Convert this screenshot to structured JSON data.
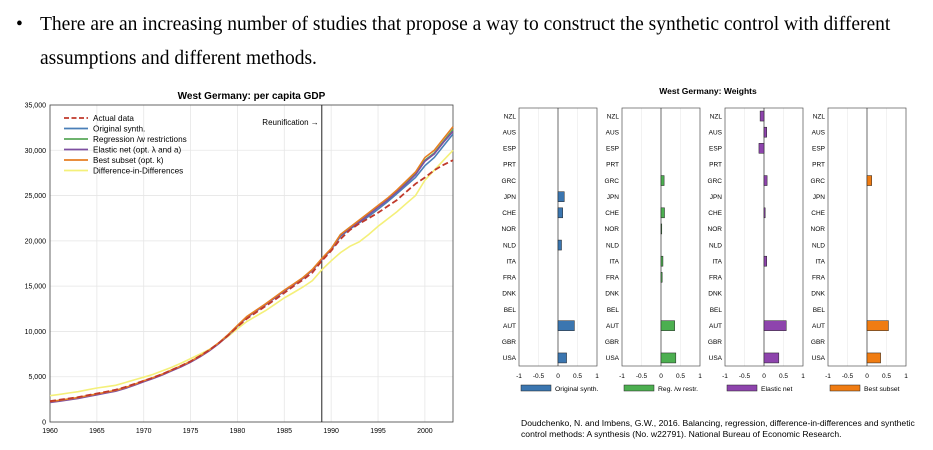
{
  "slide": {
    "bullet_text": "There are an increasing number of studies that propose a way to construct the synthetic control with different assumptions and different methods.",
    "citation": "Doudchenko, N. and Imbens, G.W., 2016. Balancing, regression, difference-in-differences and synthetic control methods: A synthesis (No. w22791). National Bureau of Economic Research."
  },
  "chart_data": [
    {
      "type": "line",
      "title": "West Germany: per capita GDP",
      "xlabel": "",
      "ylabel": "",
      "xlim": [
        1960,
        2003
      ],
      "ylim": [
        0,
        35000
      ],
      "x_ticks": [
        "1960",
        "1965",
        "1970",
        "1975",
        "1980",
        "1985",
        "1990",
        "1995",
        "2000"
      ],
      "y_ticks": [
        "0",
        "5,000",
        "10,000",
        "15,000",
        "20,000",
        "25,000",
        "30,000",
        "35,000"
      ],
      "annotation": "Reunification →",
      "annotation_x": 1989,
      "legend_position": "top-left",
      "x": [
        1960,
        1961,
        1962,
        1963,
        1964,
        1965,
        1966,
        1967,
        1968,
        1969,
        1970,
        1971,
        1972,
        1973,
        1974,
        1975,
        1976,
        1977,
        1978,
        1979,
        1980,
        1981,
        1982,
        1983,
        1984,
        1985,
        1986,
        1987,
        1988,
        1989,
        1990,
        1991,
        1992,
        1993,
        1994,
        1995,
        1996,
        1997,
        1998,
        1999,
        2000,
        2001,
        2002,
        2003
      ],
      "series": [
        {
          "name": "Actual data",
          "color": "#c0392b",
          "dash": true,
          "values": [
            2300,
            2450,
            2600,
            2750,
            2950,
            3150,
            3350,
            3550,
            3850,
            4200,
            4550,
            4900,
            5300,
            5750,
            6200,
            6700,
            7300,
            7950,
            8700,
            9550,
            10500,
            11400,
            12100,
            12800,
            13500,
            14250,
            15000,
            15700,
            16500,
            17800,
            18900,
            20200,
            21200,
            21900,
            22500,
            23100,
            23800,
            24500,
            25400,
            26300,
            27000,
            27800,
            28400,
            28900
          ]
        },
        {
          "name": "Original synth.",
          "color": "#4a7fb8",
          "dash": false,
          "values": [
            2200,
            2350,
            2500,
            2650,
            2850,
            3050,
            3250,
            3450,
            3750,
            4100,
            4500,
            4850,
            5250,
            5700,
            6150,
            6650,
            7250,
            7900,
            8700,
            9600,
            10600,
            11600,
            12300,
            13000,
            13750,
            14500,
            15200,
            15900,
            16800,
            18000,
            19000,
            20500,
            21300,
            22000,
            22700,
            23500,
            24300,
            25200,
            26100,
            27000,
            28300,
            29200,
            30500,
            31800
          ]
        },
        {
          "name": "Regression /w restrictions",
          "color": "#5aa85a",
          "dash": false,
          "values": [
            2200,
            2350,
            2500,
            2650,
            2850,
            3050,
            3250,
            3450,
            3750,
            4100,
            4500,
            4850,
            5250,
            5700,
            6150,
            6650,
            7250,
            7900,
            8700,
            9600,
            10600,
            11600,
            12300,
            13000,
            13750,
            14500,
            15200,
            15900,
            16800,
            18000,
            19100,
            20700,
            21500,
            22200,
            23000,
            23800,
            24600,
            25500,
            26400,
            27400,
            28900,
            29700,
            31000,
            32300
          ]
        },
        {
          "name": "Elastic net (opt. λ and a)",
          "color": "#7d4fa0",
          "dash": false,
          "values": [
            2150,
            2300,
            2450,
            2600,
            2800,
            3000,
            3200,
            3400,
            3700,
            4050,
            4450,
            4800,
            5200,
            5650,
            6100,
            6600,
            7200,
            7850,
            8650,
            9550,
            10550,
            11550,
            12250,
            12950,
            13700,
            14450,
            15150,
            15850,
            16750,
            17950,
            19050,
            20600,
            21400,
            22100,
            22900,
            23700,
            24500,
            25400,
            26300,
            27300,
            28800,
            29600,
            30900,
            32100
          ]
        },
        {
          "name": "Best subset (opt. k)",
          "color": "#e67e22",
          "dash": false,
          "values": [
            2250,
            2400,
            2550,
            2700,
            2900,
            3100,
            3300,
            3500,
            3800,
            4150,
            4550,
            4900,
            5300,
            5750,
            6200,
            6700,
            7300,
            7950,
            8750,
            9650,
            10650,
            11650,
            12350,
            13050,
            13800,
            14550,
            15250,
            15950,
            16850,
            18050,
            19150,
            20700,
            21500,
            22300,
            23100,
            23900,
            24700,
            25600,
            26600,
            27600,
            29200,
            30000,
            31300,
            32600
          ]
        },
        {
          "name": "Difference-in-Differences",
          "color": "#f4f07a",
          "dash": false,
          "values": [
            2900,
            3050,
            3200,
            3350,
            3550,
            3750,
            3900,
            4050,
            4350,
            4650,
            4950,
            5250,
            5650,
            6050,
            6500,
            7000,
            7500,
            8000,
            8700,
            9450,
            10300,
            11100,
            11700,
            12300,
            13000,
            13700,
            14300,
            14900,
            15600,
            16800,
            17800,
            18700,
            19400,
            19900,
            20700,
            21600,
            22400,
            23200,
            24100,
            25000,
            26700,
            27800,
            28900,
            30000
          ]
        }
      ]
    },
    {
      "type": "bar",
      "orientation": "horizontal",
      "title": "West Germany: Weights",
      "categories": [
        "NZL",
        "AUS",
        "ESP",
        "PRT",
        "GRC",
        "JPN",
        "CHE",
        "NOR",
        "NLD",
        "ITA",
        "FRA",
        "DNK",
        "BEL",
        "AUT",
        "GBR",
        "USA"
      ],
      "x_ticks": [
        "-1",
        "-0.5",
        "0",
        "0.5",
        "1"
      ],
      "xlim": [
        -1,
        1
      ],
      "legend_position": "bottom",
      "series": [
        {
          "name": "Original synth.",
          "color": "#3b76b0",
          "values": [
            0,
            0,
            0,
            0,
            0,
            0.16,
            0.12,
            0,
            0.09,
            0,
            0,
            0,
            0,
            0.42,
            0,
            0.22
          ]
        },
        {
          "name": "Reg. /w restr.",
          "color": "#4caf50",
          "values": [
            0,
            0,
            0,
            0,
            0.08,
            0,
            0.09,
            0.02,
            0,
            0.05,
            0.03,
            0,
            0,
            0.35,
            0,
            0.38
          ]
        },
        {
          "name": "Elastic net",
          "color": "#8e44ad",
          "values": [
            -0.1,
            0.07,
            -0.13,
            0,
            0.08,
            0,
            0.03,
            0,
            0,
            0.07,
            0,
            0,
            0,
            0.57,
            0,
            0.38
          ]
        },
        {
          "name": "Best subset",
          "color": "#f07c12",
          "values": [
            0,
            0,
            0,
            0,
            0.12,
            0,
            0,
            0,
            0,
            0,
            0,
            0,
            0,
            0.55,
            0,
            0.35
          ]
        }
      ]
    }
  ]
}
